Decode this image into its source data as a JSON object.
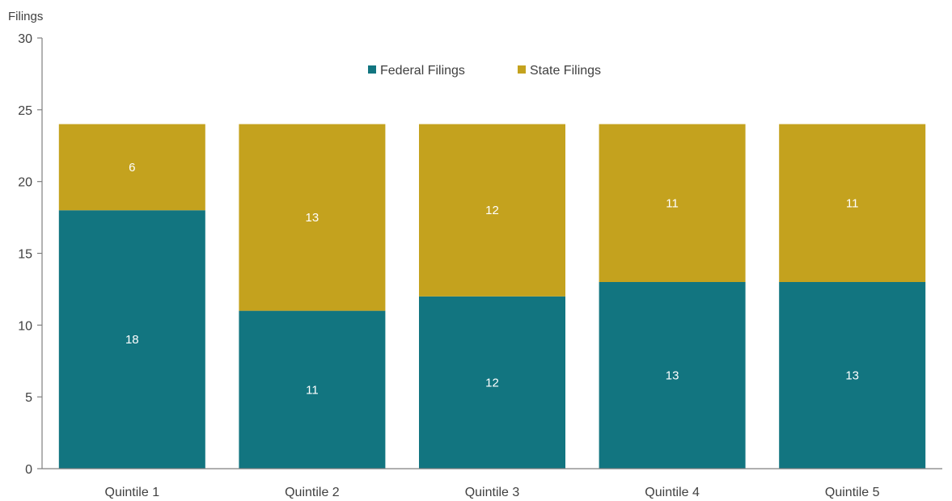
{
  "chart_data": {
    "type": "bar",
    "stacked": true,
    "title": "",
    "xlabel": "",
    "ylabel": "Filings",
    "ylim": [
      0,
      30
    ],
    "yticks": [
      0,
      5,
      10,
      15,
      20,
      25,
      30
    ],
    "grid": false,
    "legend_position": "top-center",
    "categories": [
      "Quintile 1",
      "Quintile 2",
      "Quintile 3",
      "Quintile 4",
      "Quintile 5"
    ],
    "series": [
      {
        "name": "Federal Filings",
        "values": [
          18,
          11,
          12,
          13,
          13
        ],
        "color": "#127580"
      },
      {
        "name": "State Filings",
        "values": [
          6,
          13,
          12,
          11,
          11
        ],
        "color": "#c4a21e"
      }
    ],
    "data_labels": true
  }
}
